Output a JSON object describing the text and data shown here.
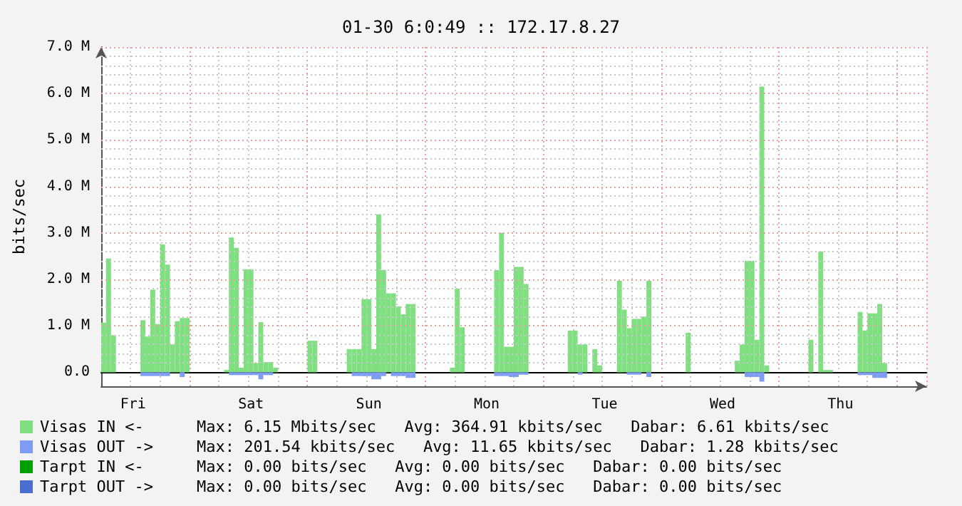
{
  "chart_data": {
    "type": "bar",
    "title": "01-30 6:0:49 :: 172.17.8.27",
    "ylabel": "bits/sec",
    "categories": [
      null,
      null,
      null,
      null,
      null,
      null,
      "Fri",
      null,
      null,
      null,
      null,
      null,
      null,
      null,
      null,
      null,
      null,
      null,
      null,
      null,
      null,
      null,
      null,
      null,
      null,
      null,
      null,
      null,
      null,
      null,
      "Sat",
      null,
      null,
      null,
      null,
      null,
      null,
      null,
      null,
      null,
      null,
      null,
      null,
      null,
      null,
      null,
      null,
      null,
      null,
      null,
      null,
      null,
      null,
      null,
      "Sun",
      null,
      null,
      null,
      null,
      null,
      null,
      null,
      null,
      null,
      null,
      null,
      null,
      null,
      null,
      null,
      null,
      null,
      null,
      null,
      null,
      null,
      null,
      null,
      "Mon",
      null,
      null,
      null,
      null,
      null,
      null,
      null,
      null,
      null,
      null,
      null,
      null,
      null,
      null,
      null,
      null,
      null,
      null,
      null,
      null,
      null,
      null,
      null,
      "Tue",
      null,
      null,
      null,
      null,
      null,
      null,
      null,
      null,
      null,
      null,
      null,
      null,
      null,
      null,
      null,
      null,
      null,
      null,
      null,
      null,
      null,
      null,
      null,
      "Wed",
      null,
      null,
      null,
      null,
      null,
      null,
      null,
      null,
      null,
      null,
      null,
      null,
      null,
      null,
      null,
      null,
      null,
      null,
      null,
      null,
      null,
      null,
      null,
      "Thu",
      null,
      null,
      null,
      null,
      null,
      null,
      null,
      null,
      null,
      null,
      null,
      null,
      null,
      null,
      null,
      null,
      null
    ],
    "ylim": [
      -0.3,
      7
    ],
    "yticks": [
      {
        "value": 0,
        "label": "0.0"
      },
      {
        "value": 0.2,
        "label": null
      },
      {
        "value": 0.4,
        "label": null
      },
      {
        "value": 0.6,
        "label": null
      },
      {
        "value": 0.8,
        "label": null
      },
      {
        "value": 1,
        "label": "1.0 M"
      },
      {
        "value": 1.2,
        "label": null
      },
      {
        "value": 1.4,
        "label": null
      },
      {
        "value": 1.6,
        "label": null
      },
      {
        "value": 1.8,
        "label": null
      },
      {
        "value": 2,
        "label": "2.0 M"
      },
      {
        "value": 2.2,
        "label": null
      },
      {
        "value": 2.4,
        "label": null
      },
      {
        "value": 2.6,
        "label": null
      },
      {
        "value": 2.8,
        "label": null
      },
      {
        "value": 3,
        "label": "3.0 M"
      },
      {
        "value": 3.2,
        "label": null
      },
      {
        "value": 3.4,
        "label": null
      },
      {
        "value": 3.6,
        "label": null
      },
      {
        "value": 3.8,
        "label": null
      },
      {
        "value": 4,
        "label": "4.0 M"
      },
      {
        "value": 4.2,
        "label": null
      },
      {
        "value": 4.4,
        "label": null
      },
      {
        "value": 4.6,
        "label": null
      },
      {
        "value": 4.8,
        "label": null
      },
      {
        "value": 5,
        "label": "5.0 M"
      },
      {
        "value": 5.2,
        "label": null
      },
      {
        "value": 5.4,
        "label": null
      },
      {
        "value": 5.6,
        "label": null
      },
      {
        "value": 5.8,
        "label": null
      },
      {
        "value": 6,
        "label": "6.0 M"
      },
      {
        "value": 6.2,
        "label": null
      },
      {
        "value": 6.4,
        "label": null
      },
      {
        "value": 6.6,
        "label": null
      },
      {
        "value": 6.8,
        "label": null
      },
      {
        "value": 7,
        "label": "7.0 M"
      }
    ],
    "grid": true,
    "legend": "bottom",
    "annotations": [
      "Max: 6.15 Mbits/sec   Avg: 364.91 kbits/sec   Dabar: 6.61 kbits/sec",
      "Max: 201.54 kbits/sec   Avg: 11.65 kbits/sec   Dabar: 1.28 kbits/sec",
      "Max: 0.00 bits/sec   Avg: 0.00 bits/sec   Dabar: 0.00 bits/sec",
      "Max: 0.00 bits/sec   Avg: 0.00 bits/sec   Dabar: 0.00 bits/sec"
    ],
    "series": [
      {
        "name": "Visas IN <-",
        "color": "#80df80",
        "values": [
          1.07,
          2.45,
          0.8,
          0,
          0,
          0,
          0,
          0,
          1.12,
          0.77,
          1.78,
          1.04,
          2.75,
          2.32,
          0.6,
          1.1,
          1.17,
          1.17,
          0,
          0,
          0,
          0,
          0,
          0,
          0,
          0.05,
          2.9,
          2.68,
          0.1,
          2.22,
          2.22,
          0.2,
          1.08,
          0.22,
          0.22,
          0.1,
          0,
          0,
          0,
          0,
          0,
          0,
          0.68,
          0.68,
          0,
          0,
          0,
          0,
          0,
          0,
          0.5,
          0.5,
          0.5,
          1.57,
          1.57,
          0.5,
          3.4,
          2.2,
          1.7,
          1.7,
          1.42,
          1.25,
          1.47,
          1.47,
          0,
          0,
          0,
          0,
          0,
          0,
          0,
          0.1,
          1.8,
          0.97,
          0,
          0,
          0,
          0,
          0,
          0,
          2.2,
          3.0,
          0.55,
          0.55,
          2.27,
          2.27,
          1.9,
          0,
          0,
          0,
          0,
          0,
          0,
          0,
          0,
          0.9,
          0.9,
          0.6,
          0.6,
          0,
          0.5,
          0.15,
          0,
          0,
          0,
          1.97,
          1.35,
          0.95,
          1.15,
          1.15,
          1.2,
          1.97,
          0,
          0,
          0,
          0,
          0,
          0,
          0,
          0.85,
          0,
          0,
          0,
          0,
          0,
          0,
          0,
          0,
          0,
          0.25,
          0.6,
          2.4,
          2.4,
          0.7,
          6.15,
          0.15,
          0,
          0,
          0,
          0,
          0,
          0,
          0,
          0,
          0.7,
          0,
          2.6,
          0.05,
          0.05,
          0,
          0,
          0,
          0,
          0,
          1.3,
          0.9,
          1.27,
          1.27,
          1.47,
          0.2,
          0,
          0,
          0,
          0,
          0,
          0,
          0,
          0
        ]
      },
      {
        "name": "Visas OUT ->",
        "color": "#7f9cf5",
        "values": [
          0,
          0,
          0,
          0,
          0,
          0,
          0,
          0,
          -0.08,
          -0.08,
          -0.08,
          -0.08,
          -0.08,
          -0.08,
          0,
          0,
          -0.1,
          0,
          0,
          0,
          0,
          0,
          0,
          0,
          0,
          0,
          -0.06,
          -0.06,
          -0.06,
          -0.06,
          -0.06,
          -0.06,
          -0.15,
          -0.06,
          -0.06,
          0,
          0,
          0,
          0,
          0,
          0,
          0,
          0,
          0,
          0,
          0,
          0,
          0,
          0,
          0,
          0,
          -0.08,
          -0.08,
          -0.08,
          -0.08,
          -0.15,
          -0.15,
          -0.08,
          0,
          -0.08,
          -0.08,
          -0.08,
          -0.12,
          -0.12,
          0,
          0,
          0,
          0,
          0,
          0,
          0,
          0,
          0,
          0,
          0,
          0,
          0,
          0,
          0,
          0,
          -0.08,
          -0.08,
          -0.08,
          -0.1,
          -0.1,
          -0.05,
          -0.05,
          0,
          0,
          0,
          0,
          0,
          0,
          0,
          0,
          0,
          0,
          -0.05,
          0,
          0,
          0,
          0,
          0,
          0,
          0,
          0,
          0,
          -0.05,
          -0.05,
          -0.05,
          0,
          -0.1,
          0,
          0,
          0,
          0,
          0,
          0,
          0,
          0,
          0,
          0,
          0,
          0,
          0,
          0,
          0,
          0,
          0,
          0,
          0,
          -0.1,
          -0.1,
          -0.1,
          -0.2,
          0,
          0,
          0,
          0,
          0,
          0,
          0,
          0,
          0,
          0,
          0,
          0,
          0,
          0,
          0,
          0,
          0,
          0,
          0,
          -0.06,
          -0.06,
          -0.06,
          -0.12,
          -0.12,
          -0.12,
          0,
          0,
          0,
          0,
          0,
          0,
          0,
          0
        ]
      },
      {
        "name": "Tarpt IN <-",
        "color": "#00a000",
        "values": [
          0,
          0,
          0,
          0,
          0,
          0,
          0,
          0,
          0,
          0,
          0,
          0,
          0,
          0,
          0,
          0,
          0,
          0,
          0,
          0,
          0,
          0,
          0,
          0,
          0,
          0,
          0,
          0,
          0,
          0,
          0,
          0,
          0,
          0,
          0,
          0,
          0,
          0,
          0,
          0,
          0,
          0,
          0,
          0,
          0,
          0,
          0,
          0,
          0,
          0,
          0,
          0,
          0,
          0,
          0,
          0,
          0,
          0,
          0,
          0,
          0,
          0,
          0,
          0,
          0,
          0,
          0,
          0,
          0,
          0,
          0,
          0,
          0,
          0,
          0,
          0,
          0,
          0,
          0,
          0,
          0,
          0,
          0,
          0,
          0,
          0,
          0,
          0,
          0,
          0,
          0,
          0,
          0,
          0,
          0,
          0,
          0,
          0,
          0,
          0,
          0,
          0,
          0,
          0,
          0,
          0,
          0,
          0,
          0,
          0,
          0,
          0,
          0,
          0,
          0,
          0,
          0,
          0,
          0,
          0,
          0,
          0,
          0,
          0,
          0,
          0,
          0,
          0,
          0,
          0,
          0,
          0,
          0,
          0,
          0,
          0,
          0,
          0,
          0,
          0,
          0,
          0,
          0,
          0,
          0,
          0,
          0,
          0,
          0,
          0,
          0,
          0,
          0,
          0,
          0,
          0,
          0,
          0,
          0,
          0,
          0,
          0,
          0,
          0,
          0,
          0,
          0,
          0
        ]
      },
      {
        "name": "Tarpt OUT ->",
        "color": "#4a6fd0",
        "values": [
          0,
          0,
          0,
          0,
          0,
          0,
          0,
          0,
          0,
          0,
          0,
          0,
          0,
          0,
          0,
          0,
          0,
          0,
          0,
          0,
          0,
          0,
          0,
          0,
          0,
          0,
          0,
          0,
          0,
          0,
          0,
          0,
          0,
          0,
          0,
          0,
          0,
          0,
          0,
          0,
          0,
          0,
          0,
          0,
          0,
          0,
          0,
          0,
          0,
          0,
          0,
          0,
          0,
          0,
          0,
          0,
          0,
          0,
          0,
          0,
          0,
          0,
          0,
          0,
          0,
          0,
          0,
          0,
          0,
          0,
          0,
          0,
          0,
          0,
          0,
          0,
          0,
          0,
          0,
          0,
          0,
          0,
          0,
          0,
          0,
          0,
          0,
          0,
          0,
          0,
          0,
          0,
          0,
          0,
          0,
          0,
          0,
          0,
          0,
          0,
          0,
          0,
          0,
          0,
          0,
          0,
          0,
          0,
          0,
          0,
          0,
          0,
          0,
          0,
          0,
          0,
          0,
          0,
          0,
          0,
          0,
          0,
          0,
          0,
          0,
          0,
          0,
          0,
          0,
          0,
          0,
          0,
          0,
          0,
          0,
          0,
          0,
          0,
          0,
          0,
          0,
          0,
          0,
          0,
          0,
          0,
          0,
          0,
          0,
          0,
          0,
          0,
          0,
          0,
          0,
          0,
          0,
          0,
          0,
          0,
          0,
          0,
          0,
          0,
          0,
          0,
          0,
          0
        ]
      }
    ]
  }
}
